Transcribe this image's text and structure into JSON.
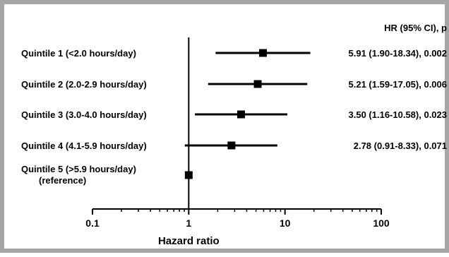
{
  "chart_data": {
    "type": "forest",
    "x_scale": "log",
    "xlim": [
      0.1,
      100
    ],
    "xlabel": "Hazard ratio",
    "x_ticks": [
      0.1,
      1,
      10,
      100
    ],
    "x_tick_labels": [
      "0.1",
      "1",
      "10",
      "100"
    ],
    "reference_line_x": 1,
    "column_header": "HR (95% CI), p",
    "rows": [
      {
        "label": "Quintile 1 (<2.0 hours/day)",
        "hr": 5.91,
        "ci_low": 1.9,
        "ci_high": 18.34,
        "annotation": "5.91 (1.90-18.34), 0.002"
      },
      {
        "label": "Quintile 2 (2.0-2.9 hours/day)",
        "hr": 5.21,
        "ci_low": 1.59,
        "ci_high": 17.05,
        "annotation": "5.21 (1.59-17.05), 0.006"
      },
      {
        "label": "Quintile 3 (3.0-4.0 hours/day)",
        "hr": 3.5,
        "ci_low": 1.16,
        "ci_high": 10.58,
        "annotation": "3.50 (1.16-10.58), 0.023"
      },
      {
        "label": "Quintile 4 (4.1-5.9 hours/day)",
        "hr": 2.78,
        "ci_low": 0.91,
        "ci_high": 8.33,
        "annotation": "2.78 (0.91-8.33), 0.071"
      },
      {
        "label": "Quintile 5 (>5.9 hours/day)",
        "label_line2": "(reference)",
        "hr": 1,
        "ci_low": null,
        "ci_high": null,
        "annotation": ""
      }
    ],
    "colors": {
      "marks": "#000000",
      "frame": "#a6a6a6"
    }
  }
}
